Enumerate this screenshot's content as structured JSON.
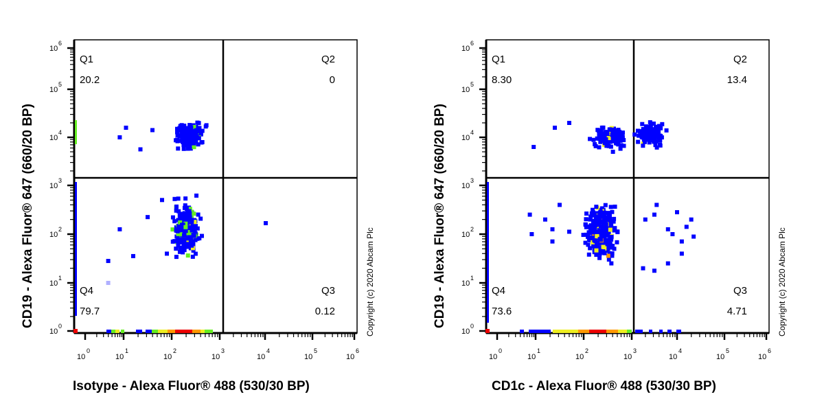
{
  "chart_data": [
    {
      "type": "scatter",
      "title": "",
      "xlabel": "Isotype - Alexa Fluor® 488 (530/30 BP)",
      "ylabel": "CD19 - Alexa Fluor® 647 (660/20 BP)",
      "xscale": "log",
      "yscale": "log",
      "xlim": [
        0.5,
        1000000
      ],
      "ylim": [
        1,
        1000000
      ],
      "x_ticks": [
        "10^0",
        "10^1",
        "10^2",
        "10^3",
        "10^4",
        "10^5",
        "10^6"
      ],
      "y_ticks": [
        "10^0",
        "10^1",
        "10^2",
        "10^3",
        "10^4",
        "10^5",
        "10^6"
      ],
      "gates": {
        "x": 1300,
        "y": 1400
      },
      "quadrants": [
        {
          "name": "Q1",
          "value": "20.2",
          "position": "upper-left"
        },
        {
          "name": "Q2",
          "value": "0",
          "position": "upper-right"
        },
        {
          "name": "Q3",
          "value": "0.12",
          "position": "lower-right"
        },
        {
          "name": "Q4",
          "value": "79.7",
          "position": "lower-left"
        }
      ],
      "density_colors": [
        "#0000ff",
        "#66ee22",
        "#eeee22",
        "#ff9900",
        "#ee0000"
      ]
    },
    {
      "type": "scatter",
      "title": "",
      "xlabel": "CD1c - Alexa Fluor® 488 (530/30 BP)",
      "ylabel": "CD19 - Alexa Fluor® 647 (660/20 BP)",
      "xscale": "log",
      "yscale": "log",
      "xlim": [
        0.5,
        1000000
      ],
      "ylim": [
        1,
        1000000
      ],
      "x_ticks": [
        "10^0",
        "10^1",
        "10^2",
        "10^3",
        "10^4",
        "10^5",
        "10^6"
      ],
      "y_ticks": [
        "10^0",
        "10^1",
        "10^2",
        "10^3",
        "10^4",
        "10^5",
        "10^6"
      ],
      "gates": {
        "x": 1300,
        "y": 1400
      },
      "quadrants": [
        {
          "name": "Q1",
          "value": "8.30",
          "position": "upper-left"
        },
        {
          "name": "Q2",
          "value": "13.4",
          "position": "upper-right"
        },
        {
          "name": "Q3",
          "value": "4.71",
          "position": "lower-right"
        },
        {
          "name": "Q4",
          "value": "73.6",
          "position": "lower-left"
        }
      ],
      "density_colors": [
        "#0000ff",
        "#66ee22",
        "#eeee22",
        "#ff9900",
        "#ee0000"
      ]
    }
  ],
  "plots": [
    {
      "xlabel": "Isotype - Alexa Fluor® 488 (530/30 BP)",
      "ylabel": "CD19 - Alexa Fluor® 647 (660/20 BP)",
      "copyright": "Copyright (c) 2020 Abcam Plc",
      "q1": {
        "name": "Q1",
        "value": "20.2"
      },
      "q2": {
        "name": "Q2",
        "value": "0"
      },
      "q3": {
        "name": "Q3",
        "value": "0.12"
      },
      "q4": {
        "name": "Q4",
        "value": "79.7"
      }
    },
    {
      "xlabel": "CD1c - Alexa Fluor® 488 (530/30 BP)",
      "ylabel": "CD19 - Alexa Fluor® 647 (660/20 BP)",
      "copyright": "Copyright (c) 2020 Abcam Plc",
      "q1": {
        "name": "Q1",
        "value": "8.30"
      },
      "q2": {
        "name": "Q2",
        "value": "13.4"
      },
      "q3": {
        "name": "Q3",
        "value": "4.71"
      },
      "q4": {
        "name": "Q4",
        "value": "73.6"
      }
    }
  ],
  "tick_labels": [
    "0",
    "1",
    "2",
    "3",
    "4",
    "5",
    "6"
  ]
}
